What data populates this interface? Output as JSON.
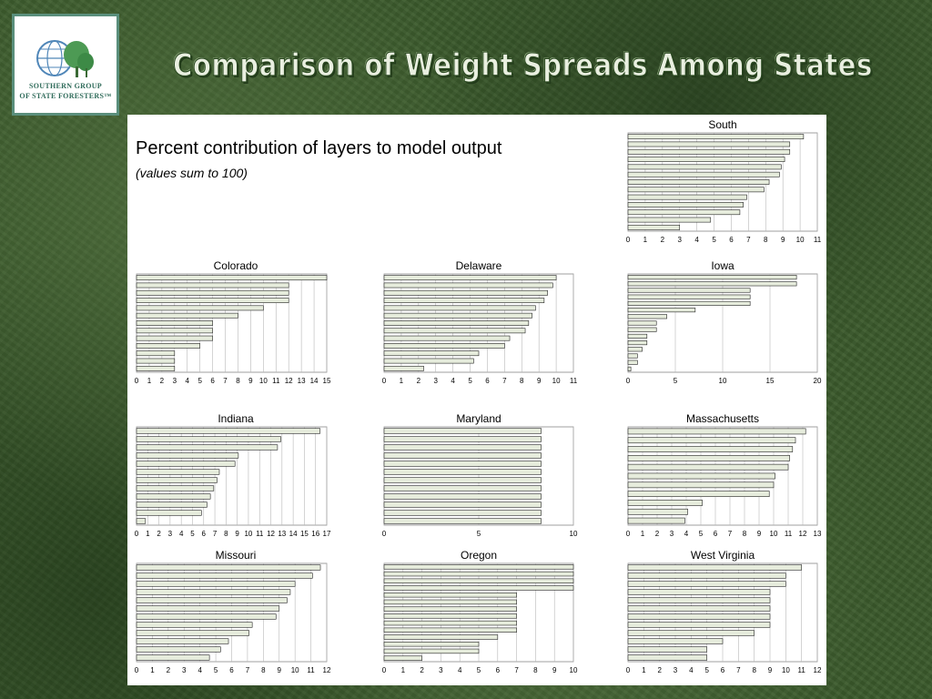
{
  "logo": {
    "line1": "SOUTHERN GROUP",
    "line2": "OF STATE FORESTERS™",
    "colors": {
      "globe": "#4f86b8",
      "tree": "#4d9a54",
      "text": "#2f6b5a"
    }
  },
  "slide": {
    "title": "Comparison of Weight Spreads Among States",
    "heading": "Percent contribution of layers to model output",
    "note": "(values sum to 100)"
  },
  "colors": {
    "bar_fill": "#e6ecdc",
    "bar_stroke": "#222222",
    "grid": "#b7b7b7",
    "background": "#3b5a2c"
  },
  "chart_data": [
    {
      "id": "south",
      "type": "bar",
      "orientation": "horizontal",
      "title": "South",
      "xlim": [
        0,
        11
      ],
      "ticks": [
        0,
        1,
        2,
        3,
        4,
        5,
        6,
        7,
        8,
        9,
        10,
        11
      ],
      "grid": true,
      "values": [
        10.2,
        9.4,
        9.4,
        9.1,
        8.9,
        8.8,
        8.2,
        7.9,
        6.9,
        6.7,
        6.5,
        4.8,
        3.0
      ]
    },
    {
      "id": "colorado",
      "type": "bar",
      "orientation": "horizontal",
      "title": "Colorado",
      "xlim": [
        0,
        15
      ],
      "ticks": [
        0,
        1,
        2,
        3,
        4,
        5,
        6,
        7,
        8,
        9,
        10,
        11,
        12,
        13,
        14,
        15
      ],
      "grid": true,
      "values": [
        15.0,
        12.0,
        12.0,
        12.0,
        10.0,
        8.0,
        6.0,
        6.0,
        6.0,
        5.0,
        3.0,
        3.0,
        3.0
      ]
    },
    {
      "id": "delaware",
      "type": "bar",
      "orientation": "horizontal",
      "title": "Delaware",
      "xlim": [
        0,
        11
      ],
      "ticks": [
        0,
        1,
        2,
        3,
        4,
        5,
        6,
        7,
        8,
        9,
        10,
        11
      ],
      "grid": true,
      "values": [
        10.0,
        9.8,
        9.5,
        9.3,
        8.8,
        8.6,
        8.4,
        8.2,
        7.3,
        7.0,
        5.5,
        5.2,
        2.3
      ]
    },
    {
      "id": "iowa",
      "type": "bar",
      "orientation": "horizontal",
      "title": "Iowa",
      "xlim": [
        0,
        20
      ],
      "ticks": [
        0,
        5,
        10,
        15,
        20
      ],
      "grid": true,
      "values": [
        17.8,
        17.8,
        12.9,
        12.9,
        12.9,
        7.1,
        4.1,
        3.0,
        3.0,
        2.0,
        2.0,
        1.5,
        1.0,
        1.0,
        0.3
      ]
    },
    {
      "id": "indiana",
      "type": "bar",
      "orientation": "horizontal",
      "title": "Indiana",
      "xlim": [
        0,
        17
      ],
      "ticks": [
        0,
        1,
        2,
        3,
        4,
        5,
        6,
        7,
        8,
        9,
        10,
        11,
        12,
        13,
        14,
        15,
        16,
        17
      ],
      "grid": true,
      "values": [
        16.4,
        12.9,
        12.6,
        9.1,
        8.8,
        7.4,
        7.2,
        6.9,
        6.6,
        6.3,
        5.8,
        0.8
      ]
    },
    {
      "id": "maryland",
      "type": "bar",
      "orientation": "horizontal",
      "title": "Maryland",
      "xlim": [
        0,
        10
      ],
      "ticks": [
        0,
        5,
        10
      ],
      "grid": true,
      "values": [
        8.3,
        8.3,
        8.3,
        8.3,
        8.3,
        8.3,
        8.3,
        8.3,
        8.3,
        8.3,
        8.3,
        8.3
      ]
    },
    {
      "id": "massachusetts",
      "type": "bar",
      "orientation": "horizontal",
      "title": "Massachusetts",
      "xlim": [
        0,
        13
      ],
      "ticks": [
        0,
        1,
        2,
        3,
        4,
        5,
        6,
        7,
        8,
        9,
        10,
        11,
        12,
        13
      ],
      "grid": true,
      "values": [
        12.2,
        11.5,
        11.3,
        11.1,
        11.0,
        10.1,
        10.0,
        9.7,
        5.1,
        4.1,
        3.9
      ]
    },
    {
      "id": "missouri",
      "type": "bar",
      "orientation": "horizontal",
      "title": "Missouri",
      "xlim": [
        0,
        12
      ],
      "ticks": [
        0,
        1,
        2,
        3,
        4,
        5,
        6,
        7,
        8,
        9,
        10,
        11,
        12
      ],
      "grid": true,
      "values": [
        11.6,
        11.1,
        10.0,
        9.7,
        9.5,
        9.0,
        8.8,
        7.3,
        7.1,
        5.8,
        5.3,
        4.6
      ]
    },
    {
      "id": "oregon",
      "type": "bar",
      "orientation": "horizontal",
      "title": "Oregon",
      "xlim": [
        0,
        10
      ],
      "ticks": [
        0,
        1,
        2,
        3,
        4,
        5,
        6,
        7,
        8,
        9,
        10
      ],
      "grid": true,
      "values": [
        10.0,
        10.0,
        10.0,
        10.0,
        7.0,
        7.0,
        7.0,
        7.0,
        7.0,
        7.0,
        6.0,
        5.0,
        5.0,
        2.0
      ]
    },
    {
      "id": "westvirginia",
      "type": "bar",
      "orientation": "horizontal",
      "title": "West Virginia",
      "xlim": [
        0,
        12
      ],
      "ticks": [
        0,
        1,
        2,
        3,
        4,
        5,
        6,
        7,
        8,
        9,
        10,
        11,
        12
      ],
      "grid": true,
      "values": [
        11.0,
        10.0,
        10.0,
        9.0,
        9.0,
        9.0,
        9.0,
        9.0,
        8.0,
        6.0,
        5.0,
        5.0
      ]
    }
  ]
}
